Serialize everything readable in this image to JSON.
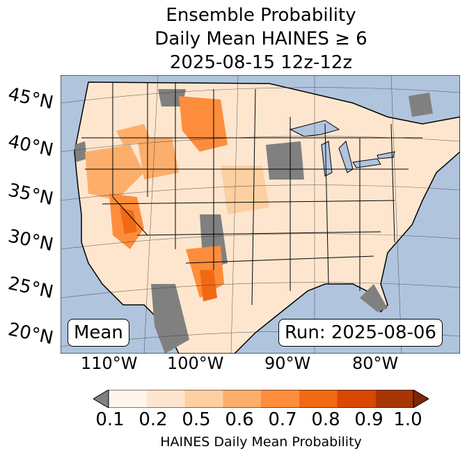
{
  "title": {
    "line1": "Ensemble Probability",
    "line2": "Daily Mean HAINES ≥ 6",
    "line3": "2025-08-15 12z-12z"
  },
  "map": {
    "lat_labels": [
      "45°N",
      "40°N",
      "35°N",
      "30°N",
      "25°N",
      "20°N"
    ],
    "lon_labels": [
      "110°W",
      "100°W",
      "90°W",
      "80°W"
    ],
    "box_left": "Mean",
    "box_right": "Run: 2025-08-06",
    "colors": {
      "ocean": "#b0c4de",
      "lakes": "#b0c4de",
      "no_data": "#808080",
      "land_low": "#fff0e4"
    }
  },
  "colorbar": {
    "label": "HAINES Daily Mean Probability",
    "ticks": [
      "0.1",
      "0.2",
      "0.5",
      "0.6",
      "0.7",
      "0.8",
      "0.9",
      "1.0"
    ],
    "colors": [
      "#fff5eb",
      "#fee6ce",
      "#fdd0a2",
      "#fdae6b",
      "#fd8d3c",
      "#f16913",
      "#d94801",
      "#a63603"
    ],
    "under_color": "#808080",
    "over_color": "#7f2704"
  }
}
